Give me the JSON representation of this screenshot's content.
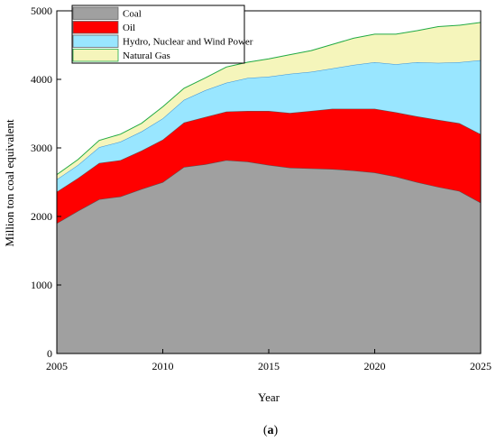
{
  "chart_data": {
    "type": "area",
    "stacked": true,
    "xlabel": "Year",
    "ylabel": "Million ton coal equivalent",
    "xlim": [
      2005,
      2025
    ],
    "ylim": [
      0,
      5000
    ],
    "x_ticks": [
      "2005",
      "2010",
      "2015",
      "2020",
      "2025"
    ],
    "y_ticks": [
      "0",
      "1000",
      "2000",
      "3000",
      "4000",
      "5000"
    ],
    "grid": false,
    "legend_position": "top-left",
    "caption_prefix": "(",
    "caption_letter": "a",
    "caption_suffix": ")",
    "x": [
      2005,
      2006,
      2007,
      2008,
      2009,
      2010,
      2011,
      2012,
      2013,
      2014,
      2015,
      2016,
      2017,
      2018,
      2019,
      2020,
      2021,
      2022,
      2023,
      2024,
      2025
    ],
    "series": [
      {
        "name": "Coal",
        "color": "#a0a0a0",
        "values": [
          1900,
          2080,
          2250,
          2290,
          2400,
          2500,
          2720,
          2760,
          2820,
          2800,
          2750,
          2710,
          2700,
          2690,
          2670,
          2640,
          2580,
          2500,
          2430,
          2370,
          2200
        ]
      },
      {
        "name": "Oil",
        "color": "#ff0000",
        "values": [
          460,
          480,
          530,
          530,
          560,
          620,
          650,
          690,
          710,
          740,
          790,
          800,
          840,
          880,
          900,
          930,
          940,
          960,
          980,
          990,
          1000
        ]
      },
      {
        "name": "Hydro, Nuclear and Wind Power",
        "color": "#99e6ff",
        "values": [
          180,
          190,
          230,
          270,
          280,
          310,
          330,
          390,
          420,
          480,
          500,
          570,
          570,
          590,
          640,
          680,
          700,
          790,
          830,
          890,
          1080
        ]
      },
      {
        "name": "Natural Gas",
        "color": "#f5f5bb",
        "values": [
          70,
          80,
          100,
          110,
          120,
          170,
          170,
          180,
          230,
          230,
          260,
          280,
          310,
          350,
          390,
          410,
          440,
          460,
          530,
          540,
          550
        ]
      }
    ]
  }
}
